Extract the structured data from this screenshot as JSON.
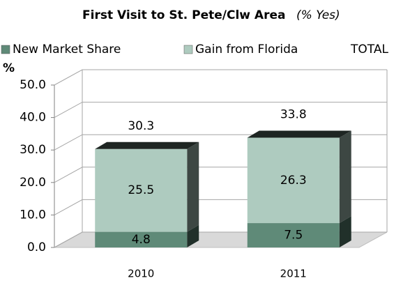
{
  "chart_data": {
    "type": "bar3d_stacked",
    "title": "First Visit to St. Pete/Clw Area",
    "subtitle": "(% Yes)",
    "y_label": "%",
    "categories": [
      "2010",
      "2011"
    ],
    "series": [
      {
        "name": "New Market Share",
        "color": "#5f8a78",
        "values": [
          4.8,
          7.5
        ]
      },
      {
        "name": "Gain from Florida",
        "color": "#aecbbf",
        "values": [
          25.5,
          26.3
        ]
      },
      {
        "name": "TOTAL",
        "values": [
          30.3,
          33.8
        ]
      }
    ],
    "ylim": [
      0,
      50
    ],
    "yticks": [
      {
        "value": 0,
        "label": "0.0"
      },
      {
        "value": 10,
        "label": "10.0"
      },
      {
        "value": 20,
        "label": "20.0"
      },
      {
        "value": 30,
        "label": "30.0"
      },
      {
        "value": 40,
        "label": "40.0"
      },
      {
        "value": 50,
        "label": "50.0"
      }
    ],
    "grid": true
  }
}
